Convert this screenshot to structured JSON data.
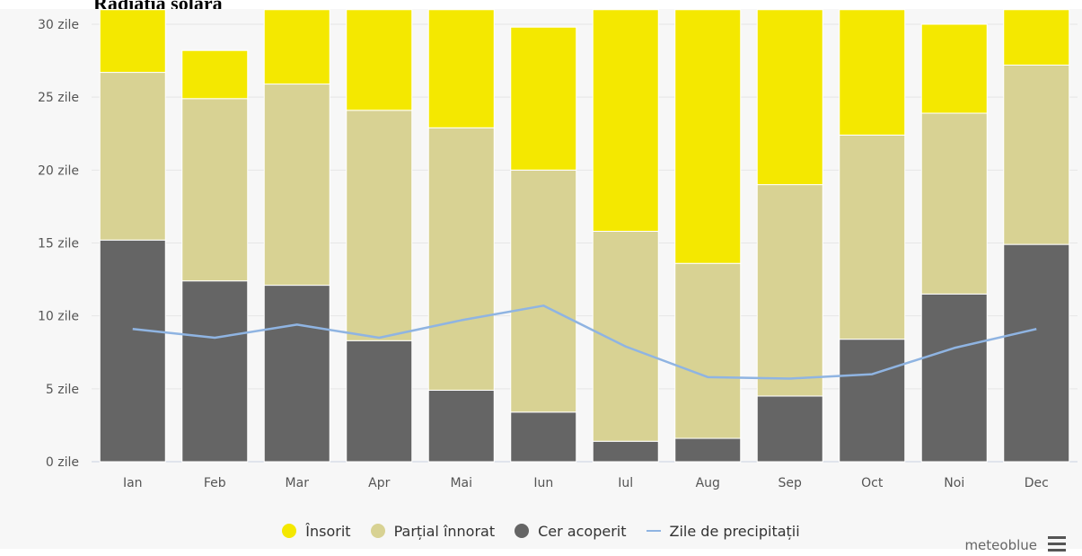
{
  "page": {
    "title": "Radiația solară"
  },
  "brand": "meteoblue",
  "colors": {
    "insorit": "#f4e800",
    "partial": "#d8d293",
    "acoperit": "#656565",
    "precip": "#8fb4e2"
  },
  "legend": [
    {
      "label": "Însorit",
      "color": "#f4e800",
      "kind": "dot"
    },
    {
      "label": "Parțial înnorat",
      "color": "#d8d293",
      "kind": "dot"
    },
    {
      "label": "Cer acoperit",
      "color": "#656565",
      "kind": "dot"
    },
    {
      "label": "Zile de precipitații",
      "color": "#8fb4e2",
      "kind": "line"
    }
  ],
  "chart_data": {
    "type": "bar",
    "stacked": true,
    "categories": [
      "Ian",
      "Feb",
      "Mar",
      "Apr",
      "Mai",
      "Iun",
      "Iul",
      "Aug",
      "Sep",
      "Oct",
      "Noi",
      "Dec"
    ],
    "series": [
      {
        "name": "Cer acoperit",
        "values": [
          15.2,
          12.4,
          12.1,
          8.3,
          4.9,
          3.4,
          1.4,
          1.6,
          4.5,
          8.4,
          11.5,
          14.9
        ]
      },
      {
        "name": "Parțial înnorat",
        "values": [
          11.5,
          12.5,
          13.8,
          15.8,
          18.0,
          16.6,
          14.4,
          12.0,
          14.5,
          14.0,
          12.4,
          12.3
        ]
      },
      {
        "name": "Însorit",
        "values": [
          4.3,
          3.3,
          5.1,
          6.9,
          8.1,
          9.8,
          15.2,
          17.4,
          12.0,
          8.6,
          6.1,
          3.8
        ]
      }
    ],
    "line_series": {
      "name": "Zile de precipitații",
      "values": [
        9.1,
        8.5,
        9.4,
        8.5,
        9.7,
        10.7,
        7.9,
        5.8,
        5.7,
        6.0,
        7.8,
        9.1
      ]
    },
    "yticks": [
      "0 zile",
      "5 zile",
      "10 zile",
      "15 zile",
      "20 zile",
      "25 zile",
      "30 zile"
    ],
    "ylim": [
      0,
      30
    ],
    "grid": true,
    "legend_position": "bottom"
  }
}
